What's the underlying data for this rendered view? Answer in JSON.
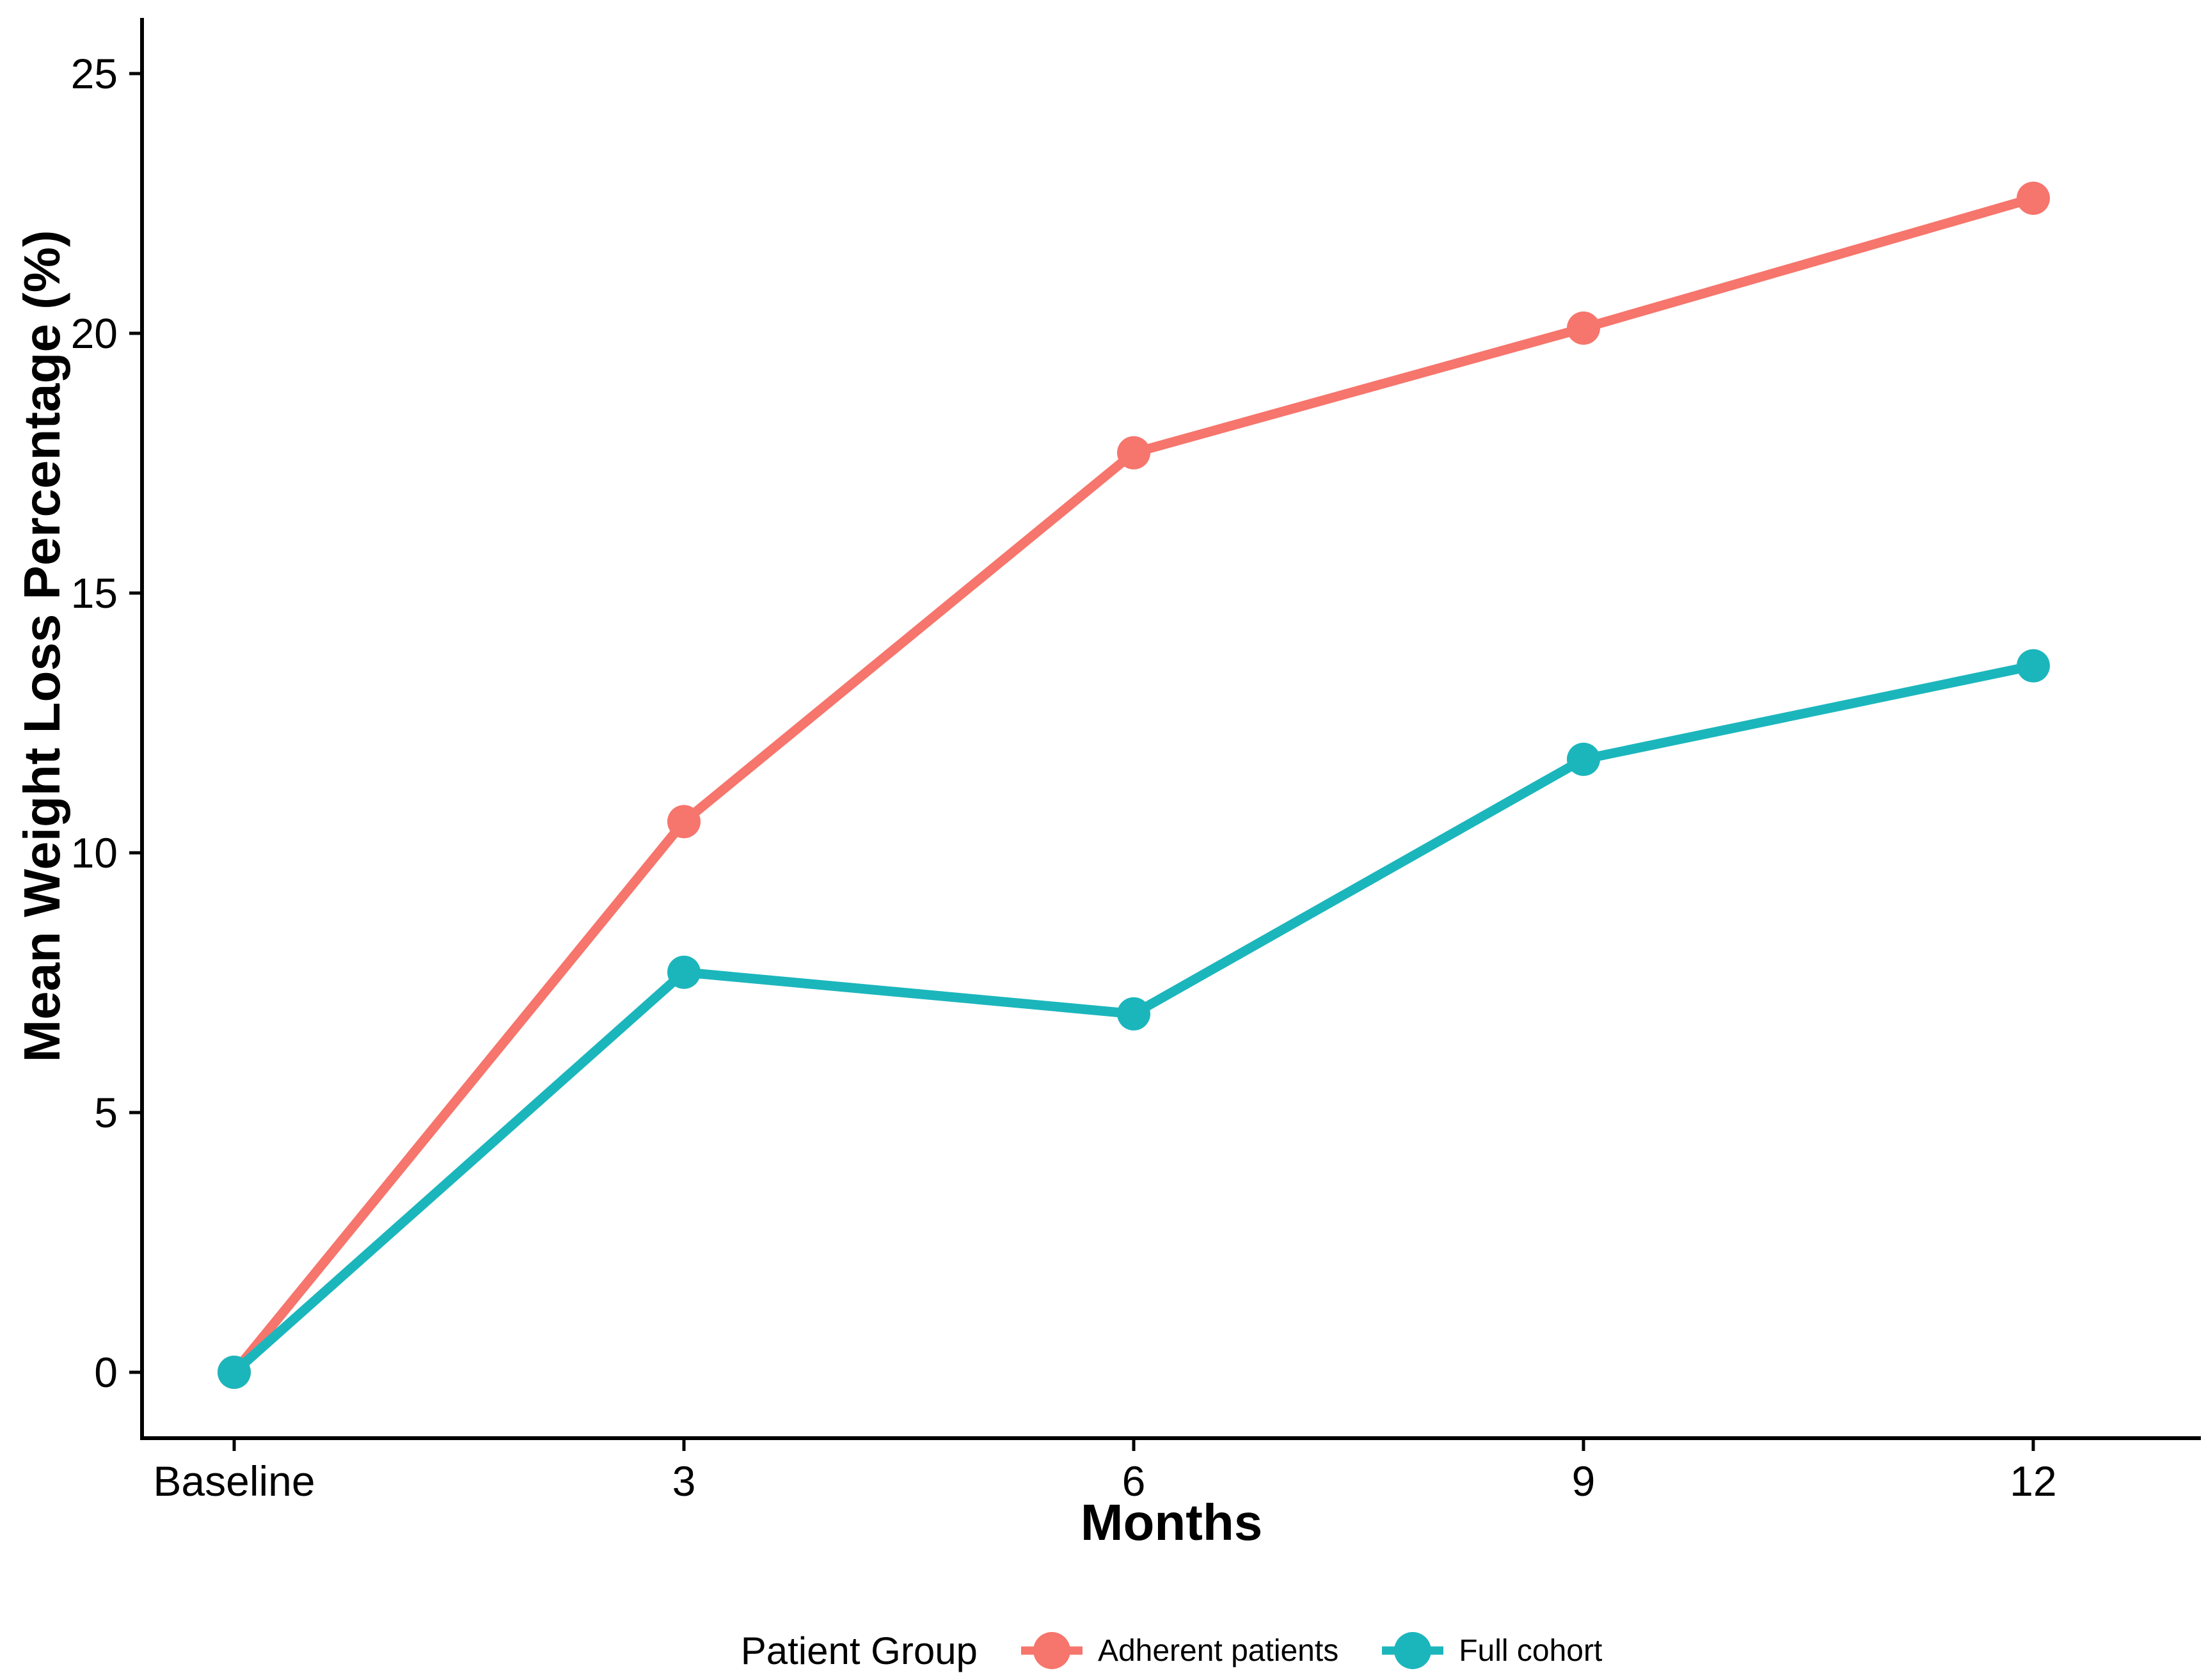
{
  "chart_data": {
    "type": "line",
    "x_categories": [
      "Baseline",
      "3",
      "6",
      "9",
      "12"
    ],
    "series": [
      {
        "name": "Adherent patients",
        "color": "#F6756C",
        "values": [
          0,
          10.6,
          17.7,
          20.1,
          22.6
        ]
      },
      {
        "name": "Full cohort",
        "color": "#1BB6BC",
        "values": [
          0,
          7.7,
          6.9,
          11.8,
          13.6
        ]
      }
    ],
    "title": "",
    "xlabel": "Months",
    "ylabel": "Mean Weight Loss Percentage (%)",
    "yticks": [
      0,
      5,
      10,
      15,
      20,
      25
    ],
    "ylim": [
      -1.3,
      26.1
    ],
    "grid": false,
    "legend": {
      "title": "Patient Group",
      "position": "bottom",
      "entries": [
        "Adherent patients",
        "Full cohort"
      ]
    }
  },
  "colors": {
    "axis": "#000000",
    "text": "#000000",
    "background": "#FFFFFF"
  }
}
